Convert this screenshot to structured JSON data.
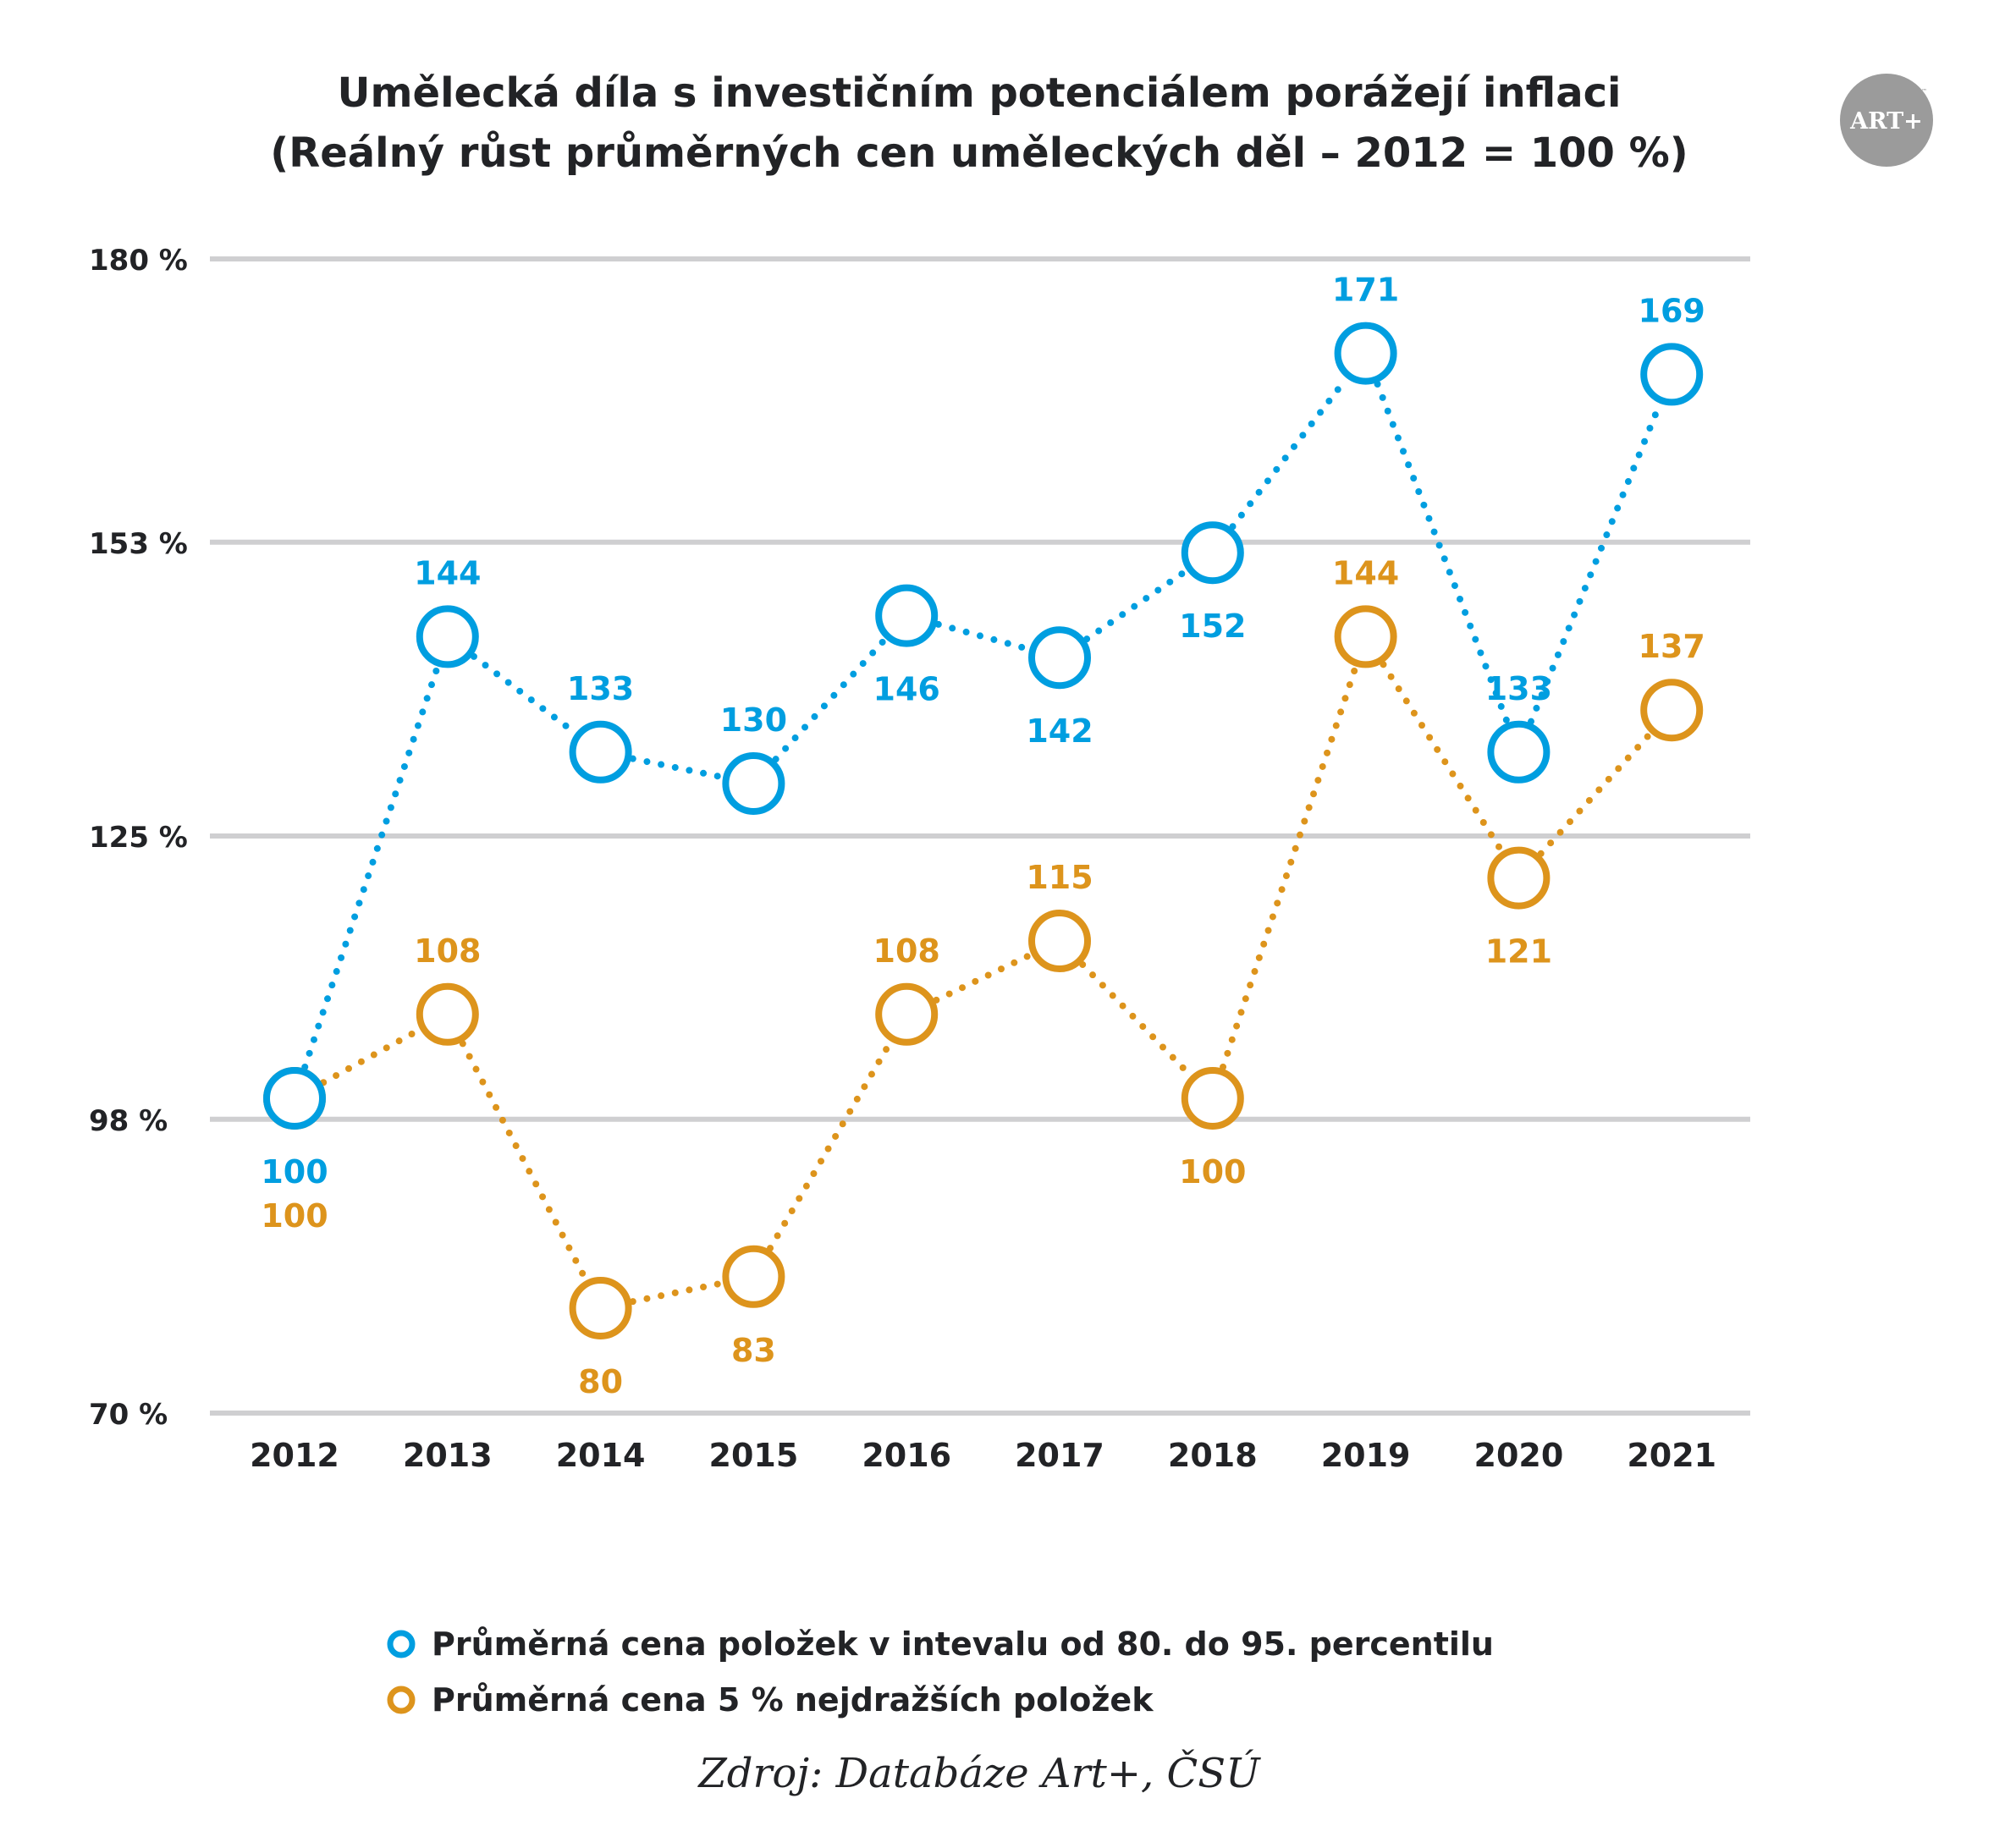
{
  "logo": {
    "text": "ART+",
    "trademark": "™",
    "bg_color": "#9b9b9b"
  },
  "colors": {
    "series_blue": "#009ee0",
    "series_orange": "#dd941c",
    "grid": "#cfcfd1",
    "text": "#222326"
  },
  "chart_data": {
    "type": "line",
    "title": "Umělecká díla s investičním potenciálem porážejí inflaci",
    "subtitle": "(Reálný růst průměrných cen uměleckých děl – 2012 = 100 %)",
    "xlabel": "",
    "ylabel": "",
    "categories": [
      "2012",
      "2013",
      "2014",
      "2015",
      "2016",
      "2017",
      "2018",
      "2019",
      "2020",
      "2021"
    ],
    "y_ticks": [
      180,
      153,
      125,
      98,
      70
    ],
    "y_tick_labels": [
      "180 %",
      "153 %",
      "125 %",
      "98 %",
      "70 %"
    ],
    "ylim": [
      70,
      180
    ],
    "grid": true,
    "legend_position": "bottom",
    "line_style": "dotted",
    "marker": "open-circle",
    "series": [
      {
        "name": "Průměrná cena položek v intevalu od 80. do 95. percentilu",
        "color": "#009ee0",
        "values": [
          100,
          144,
          133,
          130,
          146,
          142,
          152,
          171,
          133,
          169
        ],
        "label_positions": [
          "below",
          "above",
          "above",
          "above",
          "below",
          "below",
          "below",
          "above",
          "above",
          "above"
        ]
      },
      {
        "name": "Průměrná cena 5 % nejdražších položek",
        "color": "#dd941c",
        "values": [
          100,
          108,
          80,
          83,
          108,
          115,
          100,
          144,
          121,
          137
        ],
        "label_positions": [
          "below2",
          "above",
          "below",
          "below",
          "above",
          "above",
          "below",
          "above",
          "below",
          "above"
        ]
      }
    ],
    "source": "Zdroj: Databáze Art+, ČSÚ"
  }
}
